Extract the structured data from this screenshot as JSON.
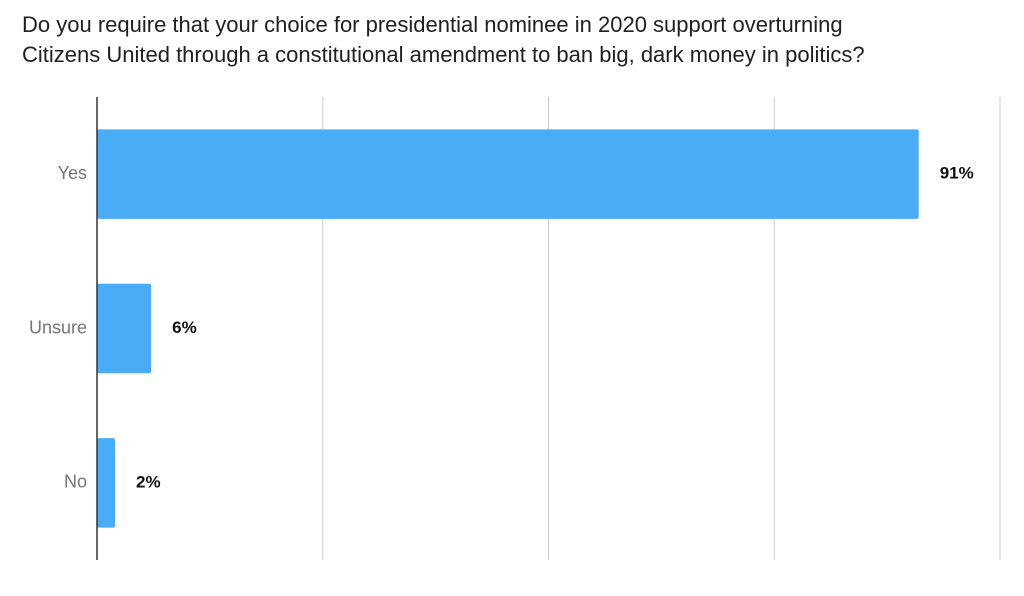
{
  "chart_data": {
    "type": "bar",
    "orientation": "horizontal",
    "title_lines": [
      "Do you require that your choice for presidential nominee in 2020 support overturning",
      "Citizens United through a constitutional amendment to ban big, dark money in politics?"
    ],
    "categories": [
      "Yes",
      "Unsure",
      "No"
    ],
    "values": [
      91,
      6,
      2
    ],
    "value_labels": [
      "91%",
      "6%",
      "2%"
    ],
    "xlim": [
      0,
      100
    ],
    "grid": true,
    "legend": "none",
    "bar_color": "#4AABF7"
  }
}
